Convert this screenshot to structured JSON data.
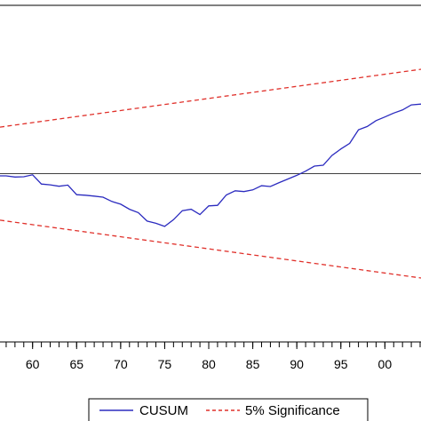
{
  "colors": {
    "cusum": "#2b2bbf",
    "significance": "#e0302a",
    "zero_line": "#000000",
    "frame": "#000000",
    "background": "#ffffff"
  },
  "chart_data": {
    "type": "line",
    "title": "",
    "xlabel": "",
    "ylabel": "",
    "xlim": [
      1956.3,
      2004.1
    ],
    "ylim": [
      -60,
      60
    ],
    "x_ticks": [
      1960,
      1965,
      1970,
      1975,
      1980,
      1985,
      1990,
      1995,
      2000
    ],
    "x_tick_labels": [
      "60",
      "65",
      "70",
      "75",
      "80",
      "85",
      "90",
      "95",
      "00"
    ],
    "grid": false,
    "legend_position": "bottom-center",
    "series": [
      {
        "name": "CUSUM",
        "style": "solid",
        "x": [
          1956.3,
          1957,
          1958,
          1959,
          1960,
          1961,
          1962,
          1963,
          1964,
          1965,
          1966,
          1967,
          1968,
          1969,
          1970,
          1971,
          1972,
          1973,
          1974,
          1975,
          1976,
          1977,
          1978,
          1979,
          1980,
          1981,
          1982,
          1983,
          1984,
          1985,
          1986,
          1987,
          1988,
          1989,
          1990,
          1991,
          1992,
          1993,
          1994,
          1995,
          1996,
          1997,
          1998,
          1999,
          2000,
          2001,
          2002,
          2003,
          2004.1
        ],
        "values": [
          -0.8,
          -0.8,
          -1.2,
          -1.1,
          -0.4,
          -3.7,
          -4.0,
          -4.5,
          -4.1,
          -7.5,
          -7.7,
          -8.0,
          -8.4,
          -9.9,
          -10.9,
          -12.7,
          -13.9,
          -16.9,
          -17.7,
          -18.8,
          -16.4,
          -13.2,
          -12.7,
          -14.6,
          -11.5,
          -11.3,
          -7.6,
          -6.1,
          -6.4,
          -5.8,
          -4.3,
          -4.6,
          -3.2,
          -1.9,
          -0.6,
          0.9,
          2.7,
          3.0,
          6.5,
          8.8,
          10.8,
          15.6,
          16.8,
          18.9,
          20.2,
          21.6,
          22.7,
          24.5,
          24.8
        ]
      },
      {
        "name": "5% Significance",
        "style": "dashed",
        "x": [
          1956.3,
          2004.1
        ],
        "values": [
          16.6,
          37.2
        ]
      },
      {
        "name": "",
        "style": "dashed",
        "x": [
          1956.3,
          2004.1
        ],
        "values": [
          -16.6,
          -37.2
        ]
      }
    ],
    "reference_line": {
      "y": 0
    },
    "legend": [
      {
        "label": "CUSUM",
        "style": "solid"
      },
      {
        "label": "5% Significance",
        "style": "dashed"
      }
    ]
  }
}
